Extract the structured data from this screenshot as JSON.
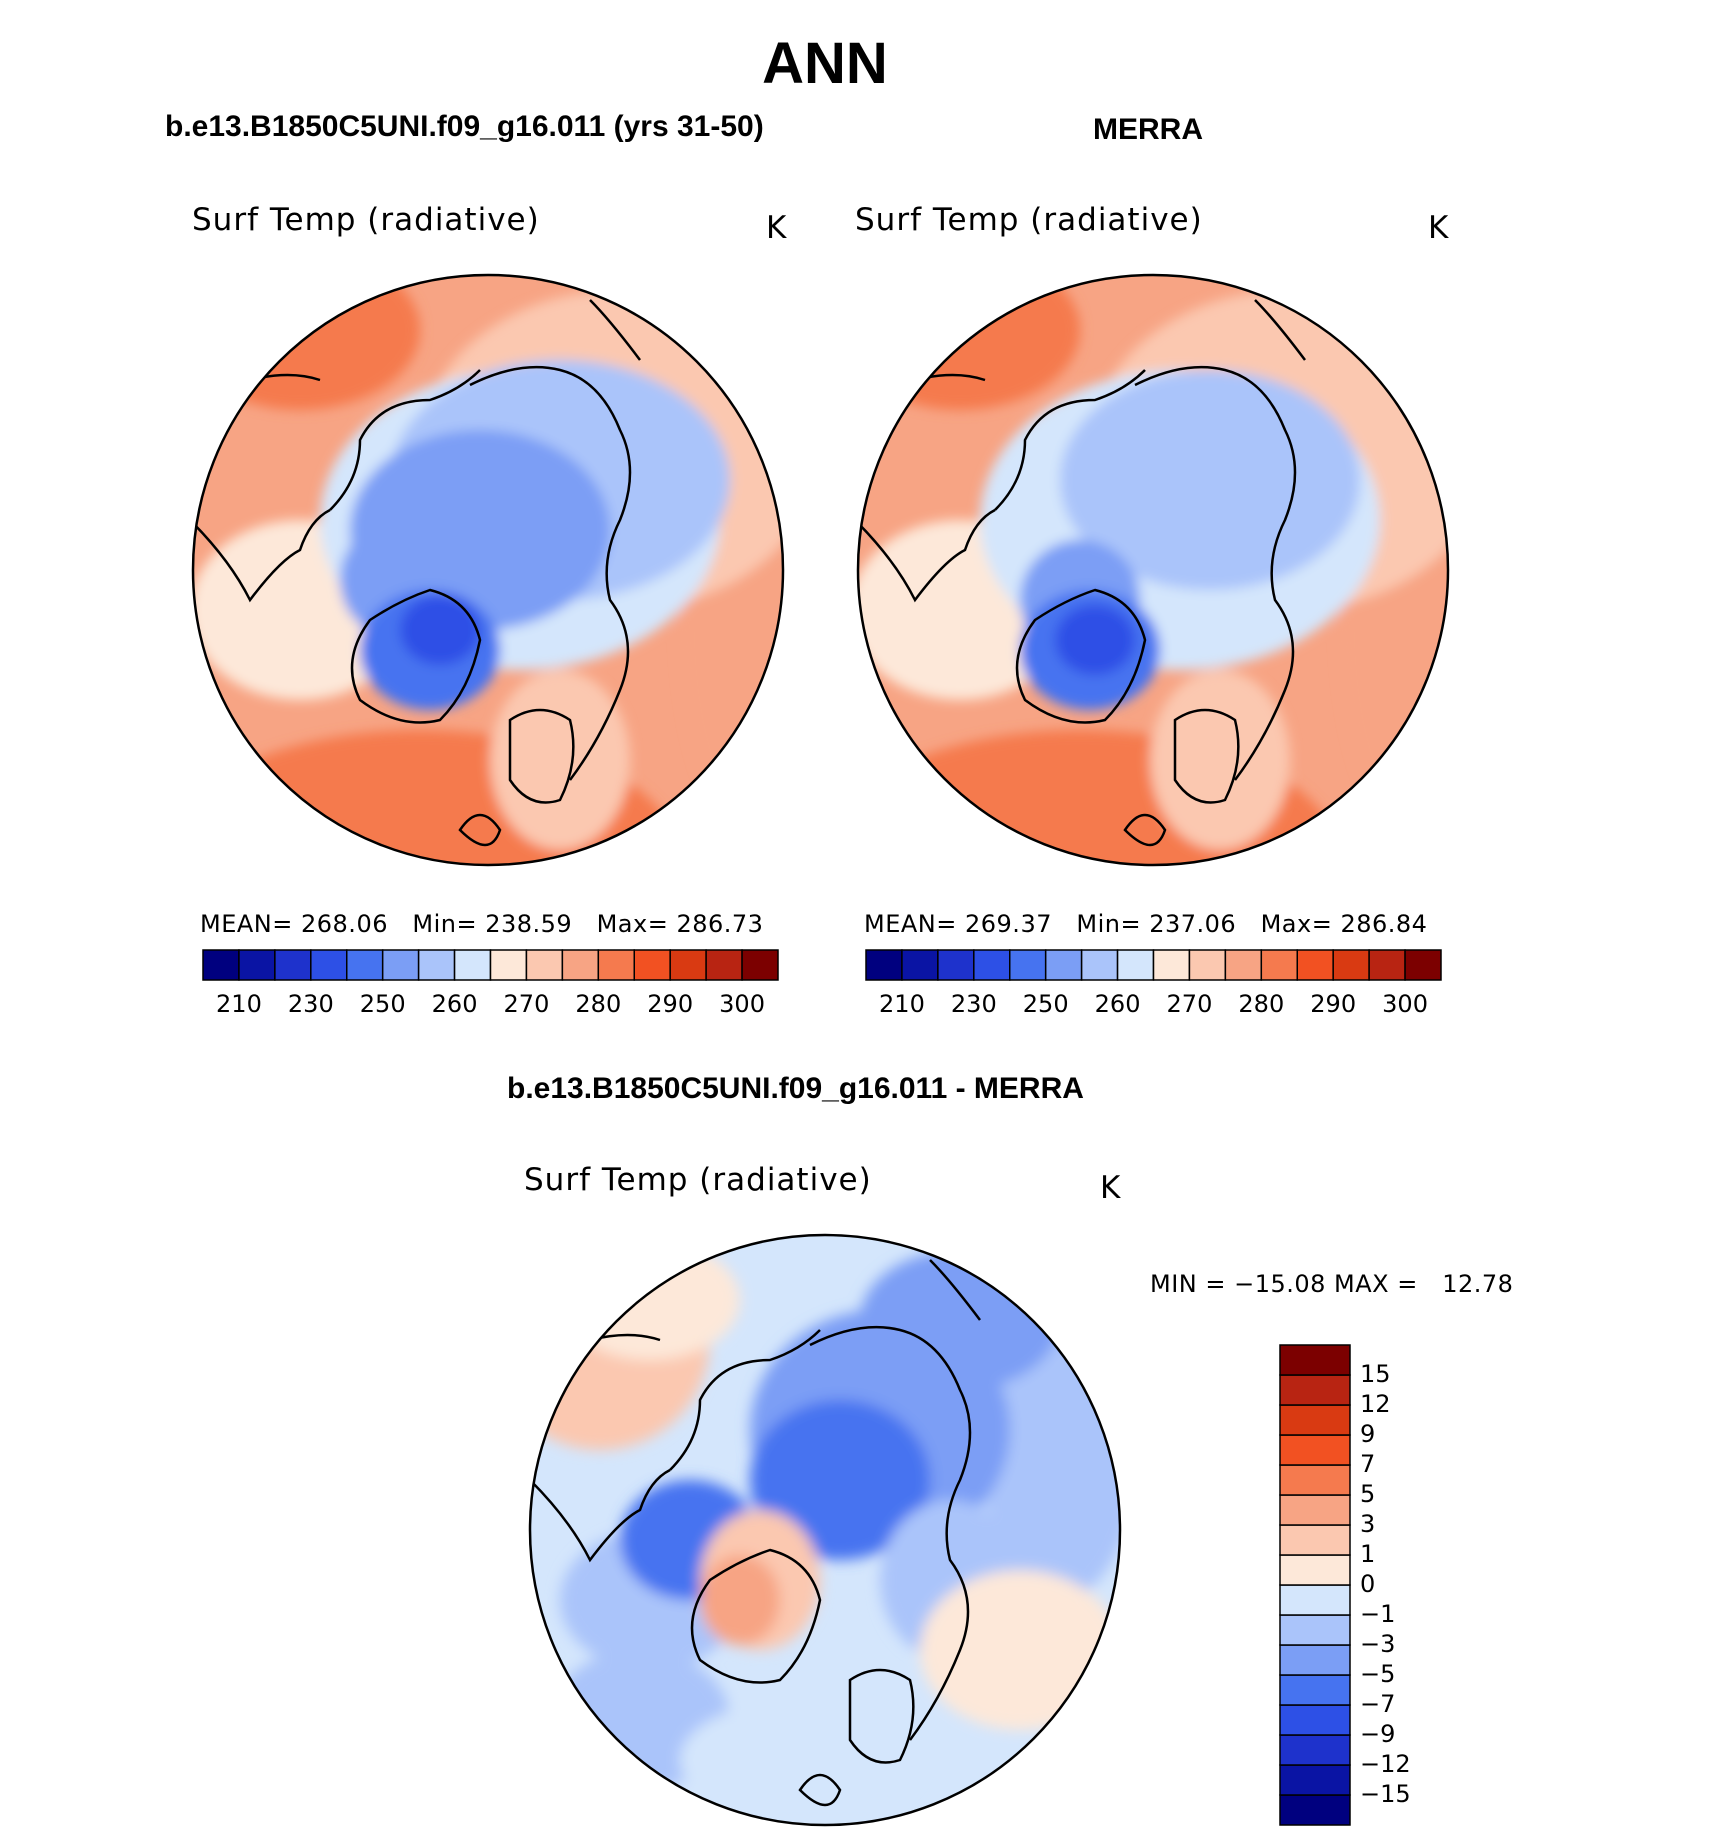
{
  "figure": {
    "main_title": "ANN",
    "panels": [
      {
        "id": "model",
        "title": "b.e13.B1850C5UNI.f09_g16.011 (yrs 31-50)",
        "variable_label": "Surf Temp (radiative)",
        "units": "K",
        "stats": {
          "mean_label": "MEAN=",
          "mean": "268.06",
          "min_label": "Min=",
          "min": "238.59",
          "max_label": "Max=",
          "max": "286.73"
        }
      },
      {
        "id": "obs",
        "title": "MERRA",
        "variable_label": "Surf Temp (radiative)",
        "units": "K",
        "stats": {
          "mean_label": "MEAN=",
          "mean": "269.37",
          "min_label": "Min=",
          "min": "237.06",
          "max_label": "Max=",
          "max": "286.84"
        }
      }
    ],
    "diff_panel": {
      "title": "b.e13.B1850C5UNI.f09_g16.011 - MERRA",
      "variable_label": "Surf Temp (radiative)",
      "units": "K",
      "minmax": "MIN = −15.08 MAX =   12.78"
    }
  },
  "colorbars": {
    "abs": {
      "colors": [
        "#00007f",
        "#0a14a4",
        "#1e32cc",
        "#2d50e6",
        "#4673f0",
        "#7b9ef5",
        "#aac4fa",
        "#d4e6fc",
        "#fde8d9",
        "#fbc8b0",
        "#f7a484",
        "#f57a4e",
        "#f25122",
        "#d93a12",
        "#b82412",
        "#7c0000"
      ],
      "tick_labels": [
        "210",
        "230",
        "250",
        "260",
        "270",
        "280",
        "290",
        "300"
      ]
    },
    "diff": {
      "colors": [
        "#00007f",
        "#0a14a4",
        "#1e32cc",
        "#2d50e6",
        "#4673f0",
        "#7b9ef5",
        "#aac4fa",
        "#d4e6fc",
        "#fde8d9",
        "#fbc8b0",
        "#f7a484",
        "#f57a4e",
        "#f25122",
        "#d93a12",
        "#b82412",
        "#7c0000"
      ],
      "tick_labels": [
        "15",
        "12",
        "9",
        "7",
        "5",
        "3",
        "1",
        "0",
        "−1",
        "−3",
        "−5",
        "−7",
        "−9",
        "−12",
        "−15"
      ]
    }
  }
}
